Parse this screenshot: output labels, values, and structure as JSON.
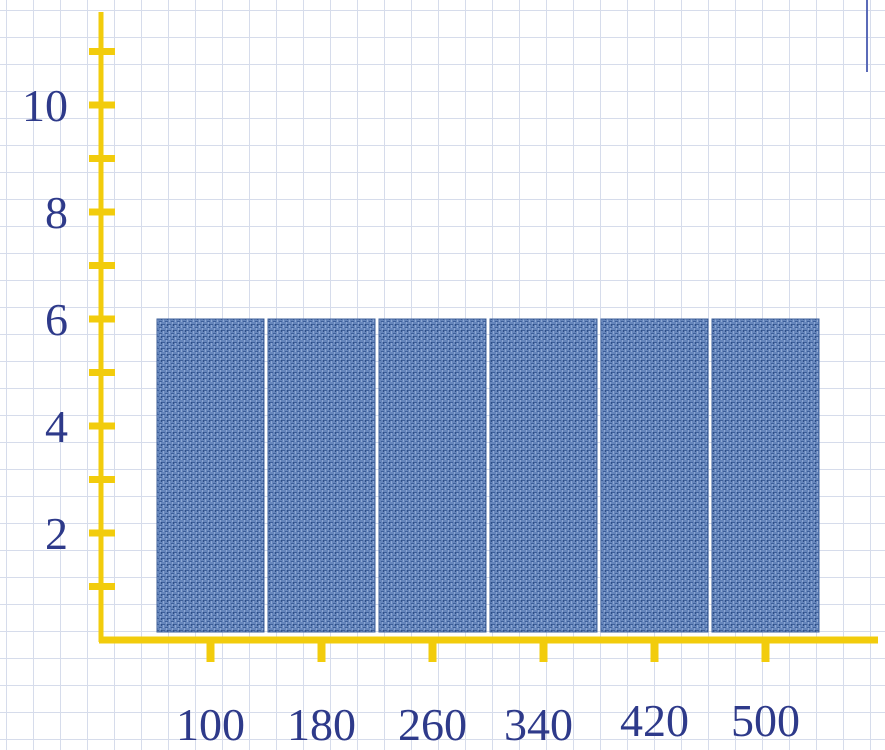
{
  "chart_data": {
    "type": "bar",
    "title": "",
    "xlabel": "",
    "ylabel": "",
    "categories": [
      "100",
      "180",
      "260",
      "340",
      "420",
      "500"
    ],
    "values": [
      6,
      6,
      6,
      6,
      6,
      6
    ],
    "ylim": [
      0,
      11.5
    ],
    "y_ticks": [
      "2",
      "4",
      "6",
      "8",
      "10"
    ],
    "grid": true,
    "legend": "none",
    "colors": {
      "axis": "#f2cc0c",
      "bar": "#5a7ab2",
      "bar_texture": "#3d5f9a",
      "text": "#2e3a8a",
      "grid": "#d6dceb",
      "corner_mark": "#5b6bb8"
    }
  }
}
